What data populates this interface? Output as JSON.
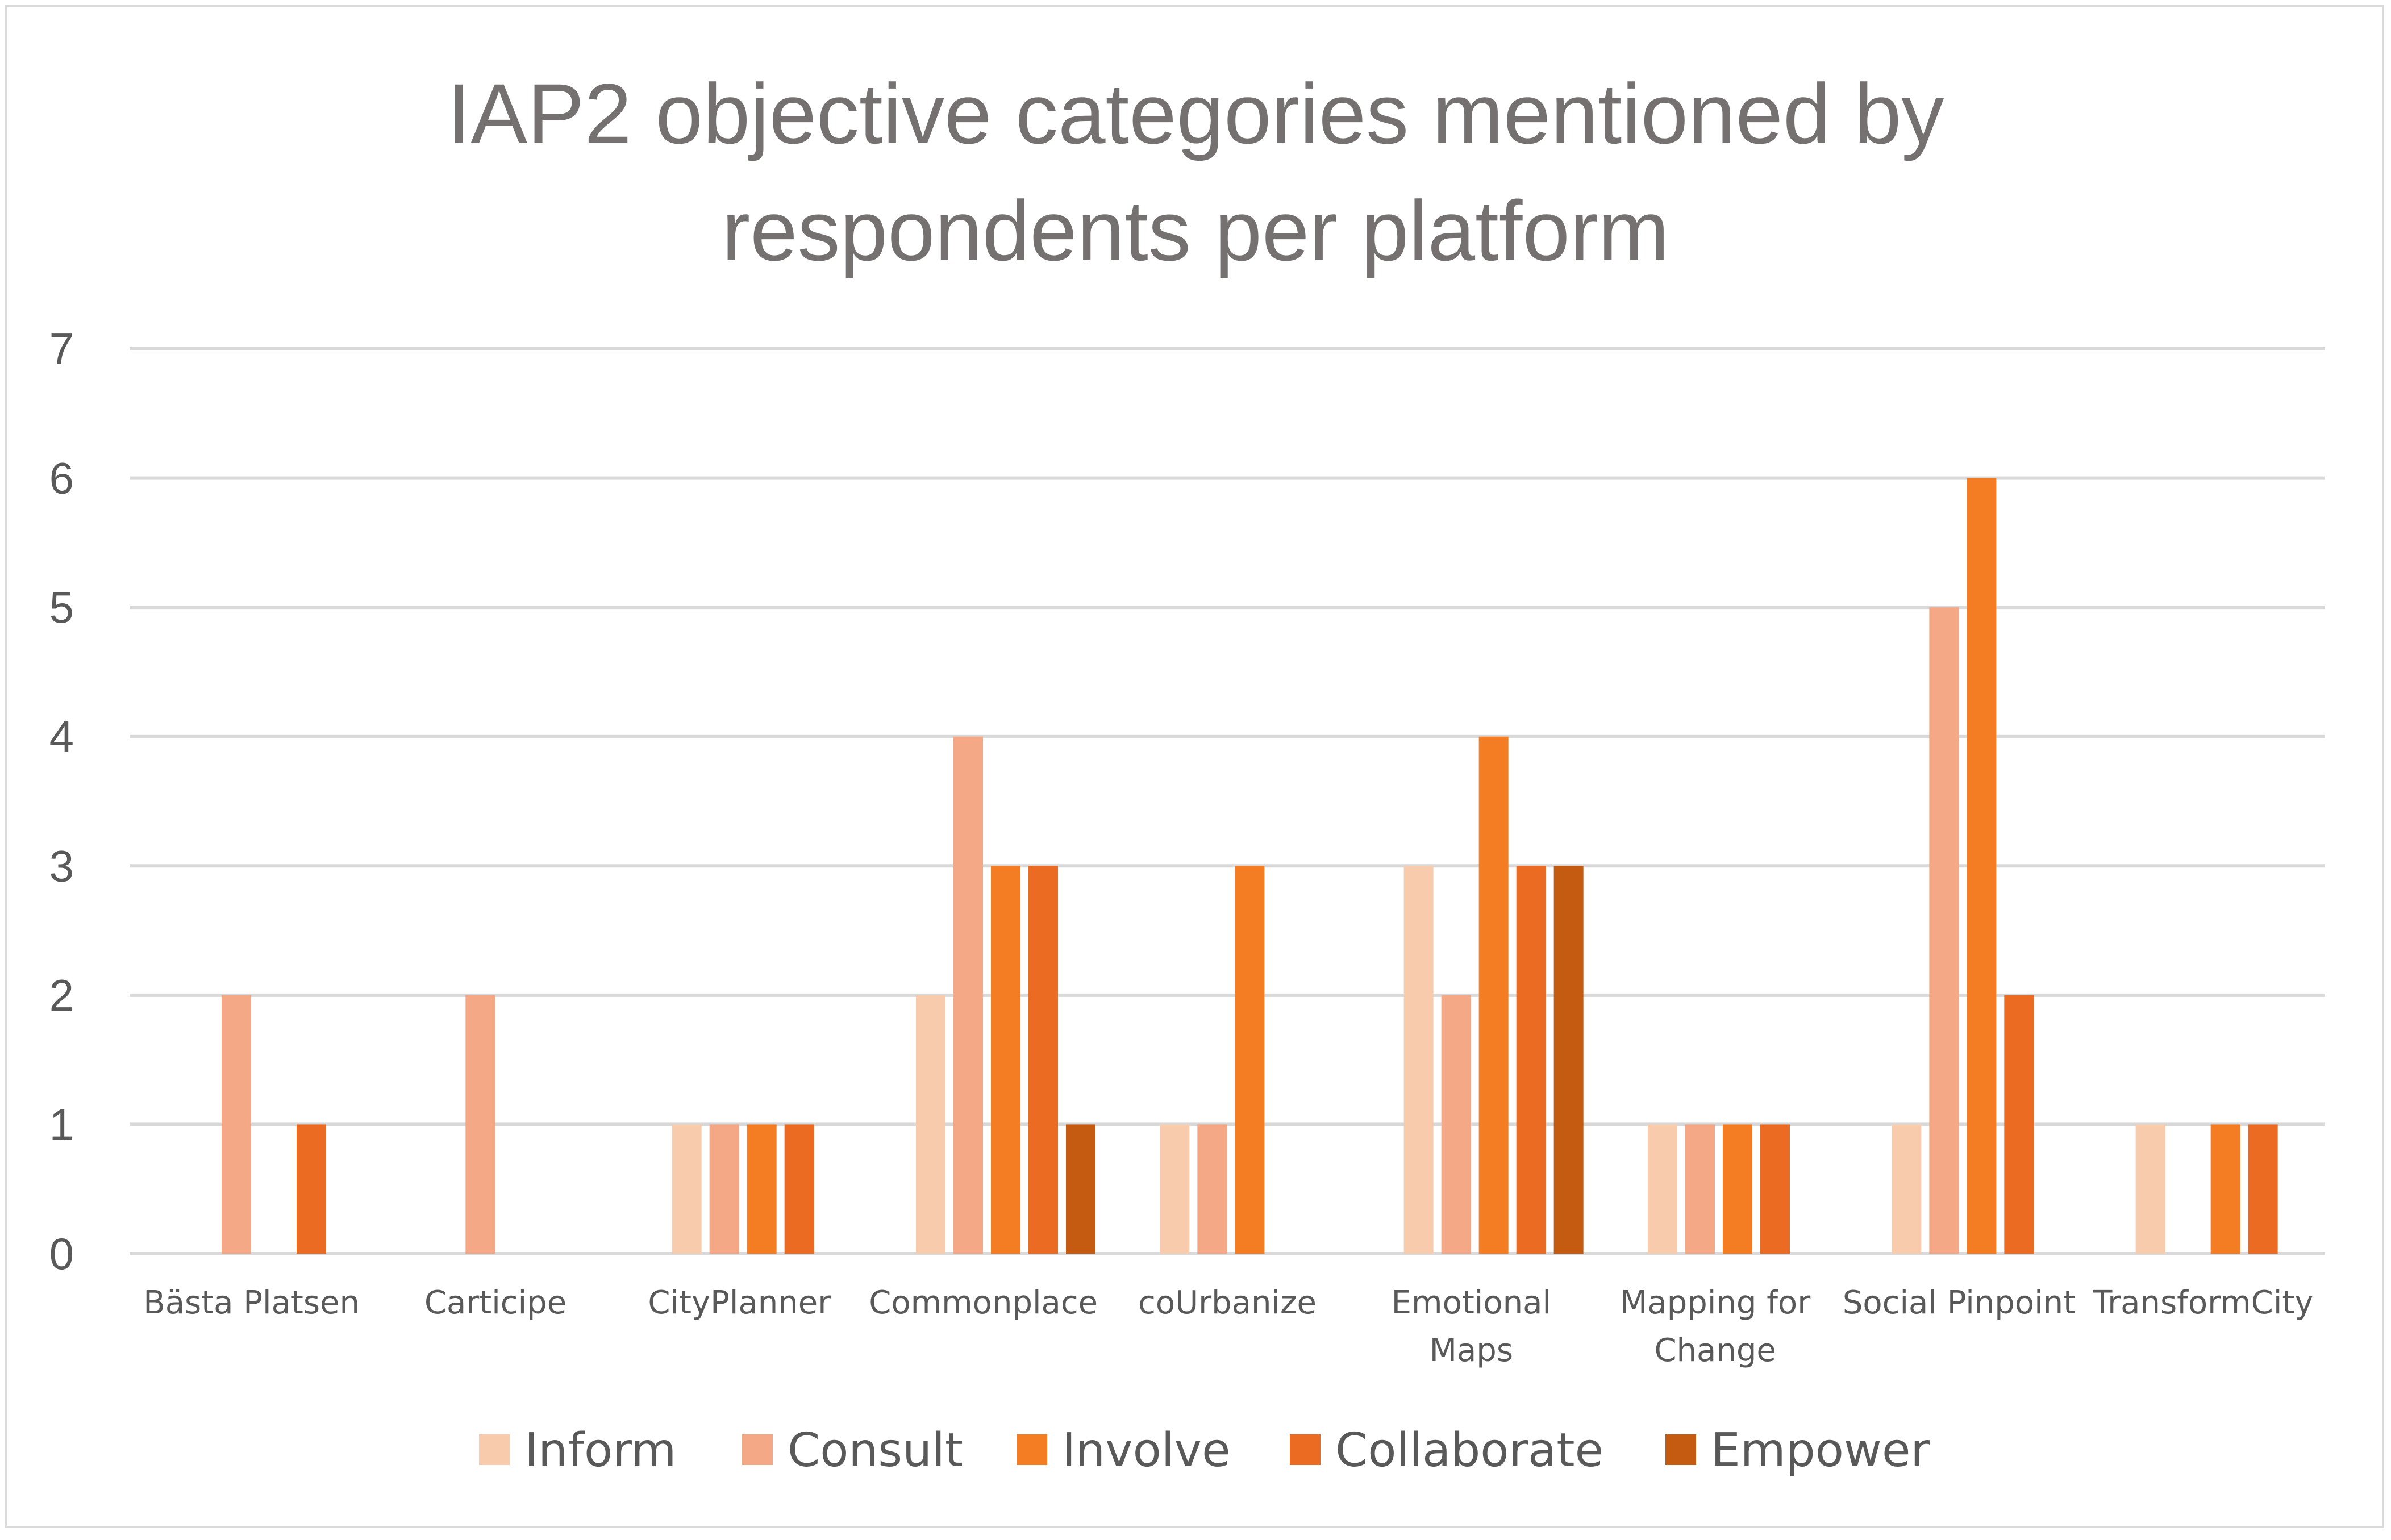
{
  "chart_data": {
    "type": "bar",
    "title_lines": [
      "IAP2 objective categories mentioned by",
      "respondents per platform"
    ],
    "categories": [
      [
        "Bästa Platsen"
      ],
      [
        "Carticipe"
      ],
      [
        "CityPlanner"
      ],
      [
        "Commonplace"
      ],
      [
        "coUrbanize"
      ],
      [
        "Emotional",
        "Maps"
      ],
      [
        "Mapping for",
        "Change"
      ],
      [
        "Social Pinpoint"
      ],
      [
        "TransformCity"
      ]
    ],
    "series": [
      {
        "name": "Inform",
        "color": "#f8cbad",
        "values": [
          0,
          0,
          1,
          2,
          1,
          3,
          1,
          1,
          1
        ]
      },
      {
        "name": "Consult",
        "color": "#f4a886",
        "values": [
          2,
          2,
          1,
          4,
          1,
          2,
          1,
          5,
          0
        ]
      },
      {
        "name": "Involve",
        "color": "#f47d24",
        "values": [
          0,
          0,
          1,
          3,
          3,
          4,
          1,
          6,
          1
        ]
      },
      {
        "name": "Collaborate",
        "color": "#ec6b22",
        "values": [
          1,
          0,
          1,
          3,
          0,
          3,
          1,
          2,
          1
        ]
      },
      {
        "name": "Empower",
        "color": "#c55a11",
        "values": [
          0,
          0,
          0,
          1,
          0,
          3,
          0,
          0,
          0
        ]
      }
    ],
    "ylim": [
      0,
      7
    ],
    "yticks": [
      "0",
      "1",
      "2",
      "3",
      "4",
      "5",
      "6",
      "7"
    ],
    "grid": true,
    "legend_position": "bottom"
  }
}
